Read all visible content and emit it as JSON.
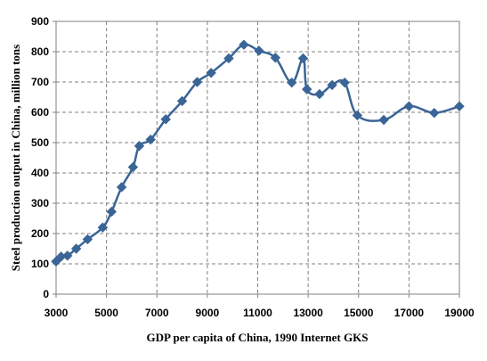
{
  "chart_data": {
    "type": "line",
    "xlabel": "GDP per capita of China, 1990 Internet GKS",
    "ylabel": "Steel production output in China, million tons",
    "xlim": [
      3000,
      19000
    ],
    "ylim": [
      0,
      900
    ],
    "xticks": [
      "3000",
      "5000",
      "7000",
      "9000",
      "11000",
      "13000",
      "15000",
      "17000",
      "19000"
    ],
    "yticks": [
      "0",
      "100",
      "200",
      "300",
      "400",
      "500",
      "600",
      "700",
      "800",
      "900"
    ],
    "grid": true,
    "legend": "none",
    "series": [
      {
        "color": "#3A6596",
        "marker": "diamond",
        "smooth": true,
        "points": [
          {
            "x": 3000,
            "y": 108
          },
          {
            "x": 3200,
            "y": 124
          },
          {
            "x": 3450,
            "y": 127
          },
          {
            "x": 3800,
            "y": 150
          },
          {
            "x": 4250,
            "y": 181
          },
          {
            "x": 4850,
            "y": 220
          },
          {
            "x": 5200,
            "y": 272
          },
          {
            "x": 5600,
            "y": 353
          },
          {
            "x": 6050,
            "y": 419
          },
          {
            "x": 6300,
            "y": 489
          },
          {
            "x": 6750,
            "y": 510
          },
          {
            "x": 7350,
            "y": 577
          },
          {
            "x": 8000,
            "y": 637
          },
          {
            "x": 8600,
            "y": 700
          },
          {
            "x": 9150,
            "y": 730
          },
          {
            "x": 9850,
            "y": 778
          },
          {
            "x": 10450,
            "y": 823
          },
          {
            "x": 11050,
            "y": 803
          },
          {
            "x": 11700,
            "y": 780
          },
          {
            "x": 12350,
            "y": 698
          },
          {
            "x": 12800,
            "y": 778
          },
          {
            "x": 12950,
            "y": 676
          },
          {
            "x": 13450,
            "y": 660
          },
          {
            "x": 13950,
            "y": 690
          },
          {
            "x": 14450,
            "y": 698
          },
          {
            "x": 14950,
            "y": 590
          },
          {
            "x": 16000,
            "y": 575
          },
          {
            "x": 17000,
            "y": 620
          },
          {
            "x": 18000,
            "y": 598
          },
          {
            "x": 19000,
            "y": 620
          }
        ]
      }
    ]
  }
}
